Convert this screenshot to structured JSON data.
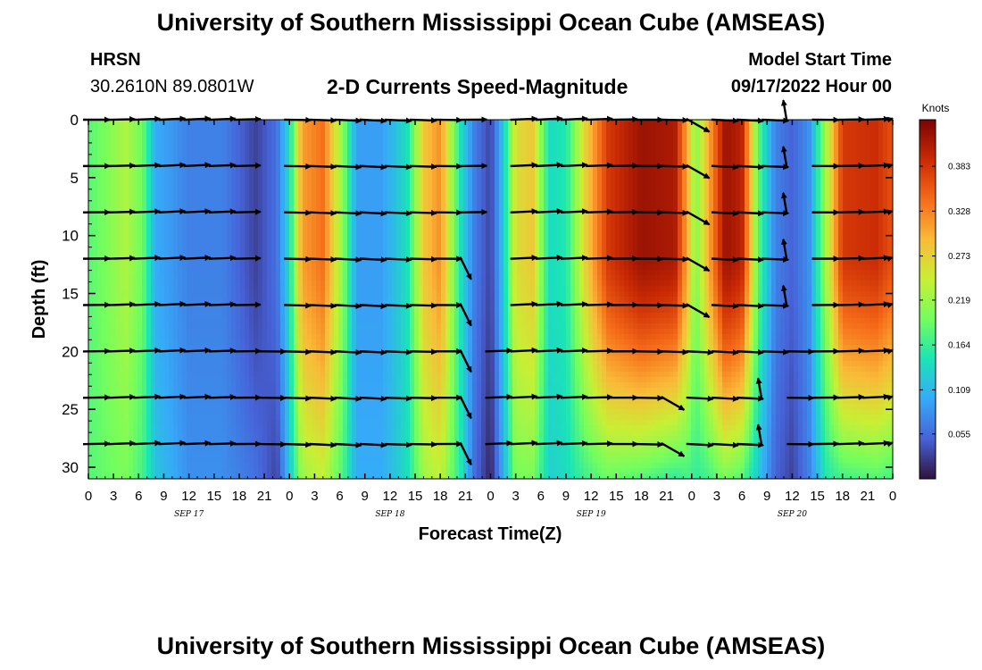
{
  "header": {
    "title": "University of Southern Mississippi Ocean Cube (AMSEAS)",
    "station": "HRSN",
    "coordinates": "30.2610N  89.0801W",
    "chart_title": "2-D Currents Speed-Magnitude",
    "model_start_label": "Model Start Time",
    "model_start_value": "09/17/2022 Hour 00"
  },
  "footer": {
    "title": "University of Southern Mississippi Ocean Cube (AMSEAS)"
  },
  "colors": {
    "colormap": [
      "#30123b",
      "#4662d7",
      "#36aaf9",
      "#1ae4b6",
      "#72fe5e",
      "#c8ef34",
      "#faba39",
      "#f66b19",
      "#ca2a04",
      "#7a0403"
    ],
    "arrow": "#000000"
  },
  "chart_data": {
    "type": "heatmap",
    "title": "2-D Currents Speed-Magnitude",
    "xlabel": "Forecast Time(Z)",
    "ylabel": "Depth (ft)",
    "x_tick_labels": [
      "0",
      "3",
      "6",
      "9",
      "12",
      "15",
      "18",
      "21",
      "0",
      "3",
      "6",
      "9",
      "12",
      "15",
      "18",
      "21",
      "0",
      "3",
      "6",
      "9",
      "12",
      "15",
      "18",
      "21",
      "0",
      "3",
      "6",
      "9",
      "12",
      "15",
      "18",
      "21",
      "0"
    ],
    "date_labels": [
      {
        "label": "SEP 17",
        "hour": 12
      },
      {
        "label": "SEP 18",
        "hour": 36
      },
      {
        "label": "SEP 19",
        "hour": 60
      },
      {
        "label": "SEP 20",
        "hour": 84
      }
    ],
    "xlim_hours": [
      0,
      96
    ],
    "ylim_ft": [
      31,
      0
    ],
    "y_ticks": [
      0,
      5,
      10,
      15,
      20,
      25,
      30
    ],
    "colorbar": {
      "label": "Knots",
      "ticks": [
        0.055,
        0.109,
        0.164,
        0.219,
        0.273,
        0.328,
        0.383
      ],
      "range": [
        0.0,
        0.44
      ]
    },
    "arrow_depths_ft": [
      0,
      4,
      8,
      12,
      16,
      20,
      24,
      28
    ],
    "speed_profile": [
      {
        "hour": 0,
        "surface": 0.18,
        "bottom": 0.18
      },
      {
        "hour": 2,
        "surface": 0.2,
        "bottom": 0.19
      },
      {
        "hour": 4.5,
        "surface": 0.23,
        "bottom": 0.2
      },
      {
        "hour": 6.5,
        "surface": 0.19,
        "bottom": 0.17
      },
      {
        "hour": 8,
        "surface": 0.1,
        "bottom": 0.12
      },
      {
        "hour": 12,
        "surface": 0.07,
        "bottom": 0.08
      },
      {
        "hour": 16,
        "surface": 0.07,
        "bottom": 0.08
      },
      {
        "hour": 20,
        "surface": 0.03,
        "bottom": 0.06
      },
      {
        "hour": 22.5,
        "surface": 0.06,
        "bottom": 0.03
      },
      {
        "hour": 24,
        "surface": 0.14,
        "bottom": 0.12
      },
      {
        "hour": 25.5,
        "surface": 0.31,
        "bottom": 0.22
      },
      {
        "hour": 28,
        "surface": 0.34,
        "bottom": 0.24
      },
      {
        "hour": 30.5,
        "surface": 0.2,
        "bottom": 0.17
      },
      {
        "hour": 32,
        "surface": 0.09,
        "bottom": 0.1
      },
      {
        "hour": 35,
        "surface": 0.09,
        "bottom": 0.1
      },
      {
        "hour": 38,
        "surface": 0.14,
        "bottom": 0.14
      },
      {
        "hour": 40,
        "surface": 0.28,
        "bottom": 0.22
      },
      {
        "hour": 42,
        "surface": 0.32,
        "bottom": 0.24
      },
      {
        "hour": 44.5,
        "surface": 0.14,
        "bottom": 0.15
      },
      {
        "hour": 46,
        "surface": 0.07,
        "bottom": 0.06
      },
      {
        "hour": 48,
        "surface": 0.03,
        "bottom": 0.01
      },
      {
        "hour": 49.5,
        "surface": 0.12,
        "bottom": 0.1
      },
      {
        "hour": 51,
        "surface": 0.26,
        "bottom": 0.2
      },
      {
        "hour": 53,
        "surface": 0.28,
        "bottom": 0.2
      },
      {
        "hour": 55,
        "surface": 0.14,
        "bottom": 0.13
      },
      {
        "hour": 57,
        "surface": 0.15,
        "bottom": 0.14
      },
      {
        "hour": 59.5,
        "surface": 0.28,
        "bottom": 0.17
      },
      {
        "hour": 62,
        "surface": 0.38,
        "bottom": 0.19
      },
      {
        "hour": 66,
        "surface": 0.42,
        "bottom": 0.18
      },
      {
        "hour": 70,
        "surface": 0.41,
        "bottom": 0.16
      },
      {
        "hour": 71.5,
        "surface": 0.3,
        "bottom": 0.17
      },
      {
        "hour": 72.5,
        "surface": 0.2,
        "bottom": 0.16
      },
      {
        "hour": 74,
        "surface": 0.3,
        "bottom": 0.17
      },
      {
        "hour": 76,
        "surface": 0.42,
        "bottom": 0.2
      },
      {
        "hour": 78,
        "surface": 0.4,
        "bottom": 0.18
      },
      {
        "hour": 80,
        "surface": 0.18,
        "bottom": 0.12
      },
      {
        "hour": 82,
        "surface": 0.07,
        "bottom": 0.05
      },
      {
        "hour": 84,
        "surface": 0.05,
        "bottom": 0.03
      },
      {
        "hour": 86,
        "surface": 0.08,
        "bottom": 0.07
      },
      {
        "hour": 88,
        "surface": 0.22,
        "bottom": 0.15
      },
      {
        "hour": 90,
        "surface": 0.38,
        "bottom": 0.17
      },
      {
        "hour": 94,
        "surface": 0.39,
        "bottom": 0.18
      },
      {
        "hour": 96,
        "surface": 0.36,
        "bottom": 0.17
      }
    ]
  }
}
